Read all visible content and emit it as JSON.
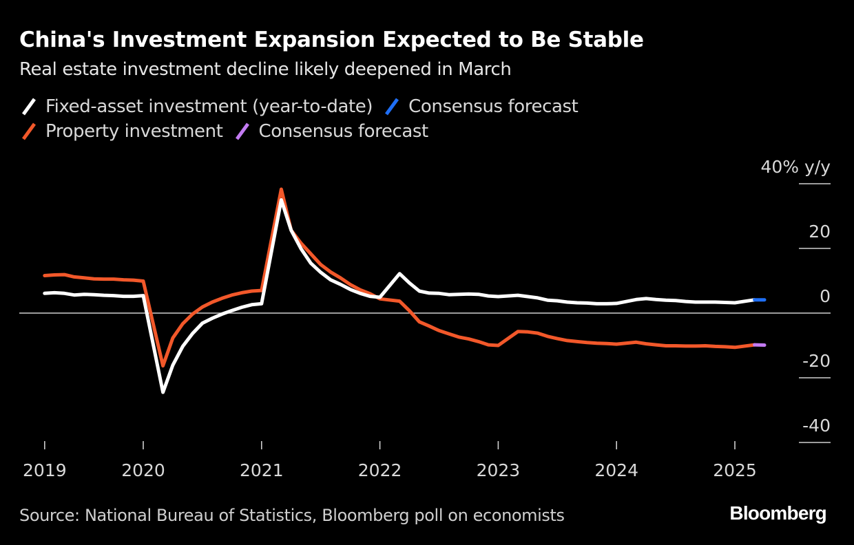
{
  "header": {
    "title": "China's Investment Expansion Expected to Be Stable",
    "subtitle": "Real estate investment decline likely deepened in March"
  },
  "legend": [
    {
      "label": "Fixed-asset investment (year-to-date)",
      "color": "#ffffff"
    },
    {
      "label": "Consensus forecast",
      "color": "#1f6ff5"
    },
    {
      "label": "Property investment",
      "color": "#f2582a"
    },
    {
      "label": "Consensus forecast",
      "color": "#c37bf2"
    }
  ],
  "footer": {
    "source": "Source: National Bureau of Statistics, Bloomberg poll on economists",
    "brand": "Bloomberg"
  },
  "chart_data": {
    "type": "line",
    "title": "China's Investment Expansion Expected to Be Stable",
    "subtitle": "Real estate investment decline likely deepened in March",
    "xlabel": "",
    "ylabel": "% y/y",
    "ylim": [
      -40,
      40
    ],
    "yticks": [
      40,
      20,
      0,
      -20,
      -40
    ],
    "ytick_labels": [
      "40% y/y",
      "20",
      "0",
      "-20",
      "-40"
    ],
    "xticks": [
      "2019",
      "2020",
      "2021",
      "2022",
      "2023",
      "2024",
      "2025"
    ],
    "grid": false,
    "legend_position": "top-left",
    "x": [
      "2019-02",
      "2019-03",
      "2019-04",
      "2019-05",
      "2019-06",
      "2019-07",
      "2019-08",
      "2019-09",
      "2019-10",
      "2019-11",
      "2019-12",
      "2020-02",
      "2020-03",
      "2020-04",
      "2020-05",
      "2020-06",
      "2020-07",
      "2020-08",
      "2020-09",
      "2020-10",
      "2020-11",
      "2020-12",
      "2021-02",
      "2021-03",
      "2021-04",
      "2021-05",
      "2021-06",
      "2021-07",
      "2021-08",
      "2021-09",
      "2021-10",
      "2021-11",
      "2021-12",
      "2022-02",
      "2022-03",
      "2022-04",
      "2022-05",
      "2022-06",
      "2022-07",
      "2022-08",
      "2022-09",
      "2022-10",
      "2022-11",
      "2022-12",
      "2023-02",
      "2023-03",
      "2023-04",
      "2023-05",
      "2023-06",
      "2023-07",
      "2023-08",
      "2023-09",
      "2023-10",
      "2023-11",
      "2023-12",
      "2024-02",
      "2024-03",
      "2024-04",
      "2024-05",
      "2024-06",
      "2024-07",
      "2024-08",
      "2024-09",
      "2024-10",
      "2024-11",
      "2024-12",
      "2025-02"
    ],
    "series": [
      {
        "name": "Fixed-asset investment (year-to-date)",
        "color": "#ffffff",
        "values": [
          6.1,
          6.3,
          6.1,
          5.6,
          5.8,
          5.7,
          5.5,
          5.4,
          5.2,
          5.2,
          5.4,
          -24.5,
          -16.1,
          -10.3,
          -6.3,
          -3.1,
          -1.6,
          -0.3,
          0.8,
          1.8,
          2.6,
          2.9,
          35.0,
          25.6,
          19.9,
          15.4,
          12.6,
          10.3,
          8.9,
          7.3,
          6.1,
          5.2,
          4.9,
          12.2,
          9.3,
          6.8,
          6.2,
          6.1,
          5.7,
          5.8,
          5.9,
          5.8,
          5.3,
          5.1,
          5.5,
          5.1,
          4.7,
          4.0,
          3.8,
          3.4,
          3.2,
          3.1,
          2.9,
          2.9,
          3.0,
          4.2,
          4.5,
          4.2,
          4.0,
          3.9,
          3.6,
          3.4,
          3.4,
          3.4,
          3.3,
          3.2,
          4.1
        ]
      },
      {
        "name": "Consensus forecast",
        "color": "#1f6ff5",
        "x": [
          "2025-02",
          "2025-03"
        ],
        "values": [
          4.1,
          4.1
        ]
      },
      {
        "name": "Property investment",
        "color": "#f2582a",
        "values": [
          11.6,
          11.8,
          11.9,
          11.2,
          10.9,
          10.6,
          10.5,
          10.5,
          10.3,
          10.2,
          9.9,
          -16.3,
          -7.7,
          -3.3,
          -0.3,
          1.9,
          3.4,
          4.6,
          5.6,
          6.3,
          6.8,
          7.0,
          38.3,
          25.6,
          21.6,
          18.3,
          15.0,
          12.7,
          10.9,
          8.8,
          7.2,
          6.0,
          4.4,
          3.7,
          0.7,
          -2.7,
          -4.0,
          -5.4,
          -6.4,
          -7.4,
          -8.0,
          -8.8,
          -9.8,
          -10.0,
          -5.7,
          -5.8,
          -6.2,
          -7.2,
          -7.9,
          -8.5,
          -8.8,
          -9.1,
          -9.3,
          -9.4,
          -9.6,
          -9.0,
          -9.5,
          -9.8,
          -10.1,
          -10.1,
          -10.2,
          -10.2,
          -10.1,
          -10.3,
          -10.4,
          -10.6,
          -9.8
        ]
      },
      {
        "name": "Consensus forecast",
        "color": "#c37bf2",
        "x": [
          "2025-02",
          "2025-03"
        ],
        "values": [
          -9.8,
          -9.9
        ]
      }
    ]
  }
}
